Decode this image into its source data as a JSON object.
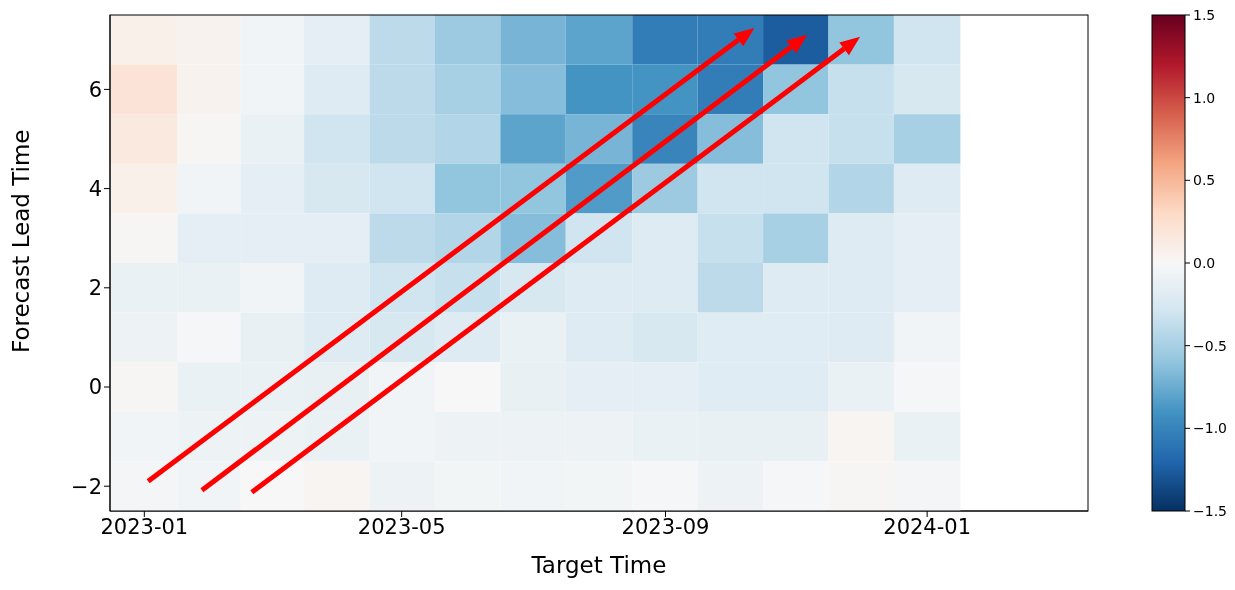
{
  "chart_data": {
    "type": "heatmap",
    "xlabel": "Target Time",
    "ylabel": "Forecast Lead Time",
    "x": [
      "2023-01",
      "2023-02",
      "2023-03",
      "2023-04",
      "2023-05",
      "2023-06",
      "2023-07",
      "2023-08",
      "2023-09",
      "2023-10",
      "2023-11",
      "2023-12",
      "2024-01"
    ],
    "xlim": [
      "2022-12-16",
      "2024-03-16"
    ],
    "xticks": [
      "2023-01",
      "2023-05",
      "2023-09",
      "2024-01"
    ],
    "y_categories": [
      null,
      "6",
      null,
      "4",
      null,
      "2",
      null,
      "0",
      null,
      "−2"
    ],
    "cells": [
      [
        0.08,
        0.05,
        -0.05,
        -0.15,
        -0.4,
        -0.55,
        -0.7,
        -0.8,
        -1.05,
        -1.05,
        -1.25,
        -0.6,
        -0.3
      ],
      [
        0.2,
        0.05,
        -0.05,
        -0.2,
        -0.4,
        -0.5,
        -0.65,
        -0.9,
        -0.9,
        -1.05,
        -0.6,
        -0.35,
        -0.25
      ],
      [
        0.15,
        0.02,
        -0.1,
        -0.3,
        -0.4,
        -0.45,
        -0.8,
        -0.7,
        -1.0,
        -0.65,
        -0.3,
        -0.35,
        -0.5
      ],
      [
        0.08,
        -0.05,
        -0.15,
        -0.25,
        -0.3,
        -0.6,
        -0.6,
        -0.85,
        -0.55,
        -0.3,
        -0.3,
        -0.45,
        -0.2
      ],
      [
        0.02,
        -0.15,
        -0.15,
        -0.15,
        -0.4,
        -0.45,
        -0.65,
        -0.3,
        -0.2,
        -0.35,
        -0.5,
        -0.2,
        -0.15
      ],
      [
        -0.1,
        -0.1,
        -0.05,
        -0.2,
        -0.3,
        -0.35,
        -0.25,
        -0.2,
        -0.2,
        -0.4,
        -0.2,
        -0.2,
        -0.15
      ],
      [
        -0.08,
        -0.02,
        -0.12,
        -0.2,
        -0.25,
        -0.2,
        -0.1,
        -0.2,
        -0.25,
        -0.18,
        -0.18,
        -0.2,
        -0.05
      ],
      [
        0.02,
        -0.1,
        -0.1,
        -0.12,
        -0.05,
        0.0,
        -0.12,
        -0.15,
        -0.15,
        -0.18,
        -0.18,
        -0.1,
        -0.02
      ],
      [
        -0.05,
        -0.08,
        -0.08,
        -0.1,
        -0.05,
        -0.08,
        -0.08,
        -0.08,
        -0.1,
        -0.12,
        -0.12,
        0.03,
        -0.1
      ],
      [
        -0.03,
        -0.05,
        0.0,
        0.03,
        -0.08,
        -0.04,
        -0.05,
        -0.04,
        -0.02,
        -0.08,
        -0.02,
        0.02,
        -0.03
      ]
    ],
    "clim": [
      -1.5,
      1.5
    ],
    "cticks": [
      {
        "value": -1.5,
        "label": "−1.5"
      },
      {
        "value": -1.0,
        "label": "−1.0"
      },
      {
        "value": -0.5,
        "label": "−0.5"
      },
      {
        "value": 0,
        "label": "0.0"
      },
      {
        "value": 0.5,
        "label": "0.5"
      },
      {
        "value": 1.0,
        "label": "1.0"
      },
      {
        "value": 1.5,
        "label": "1.5"
      }
    ]
  }
}
